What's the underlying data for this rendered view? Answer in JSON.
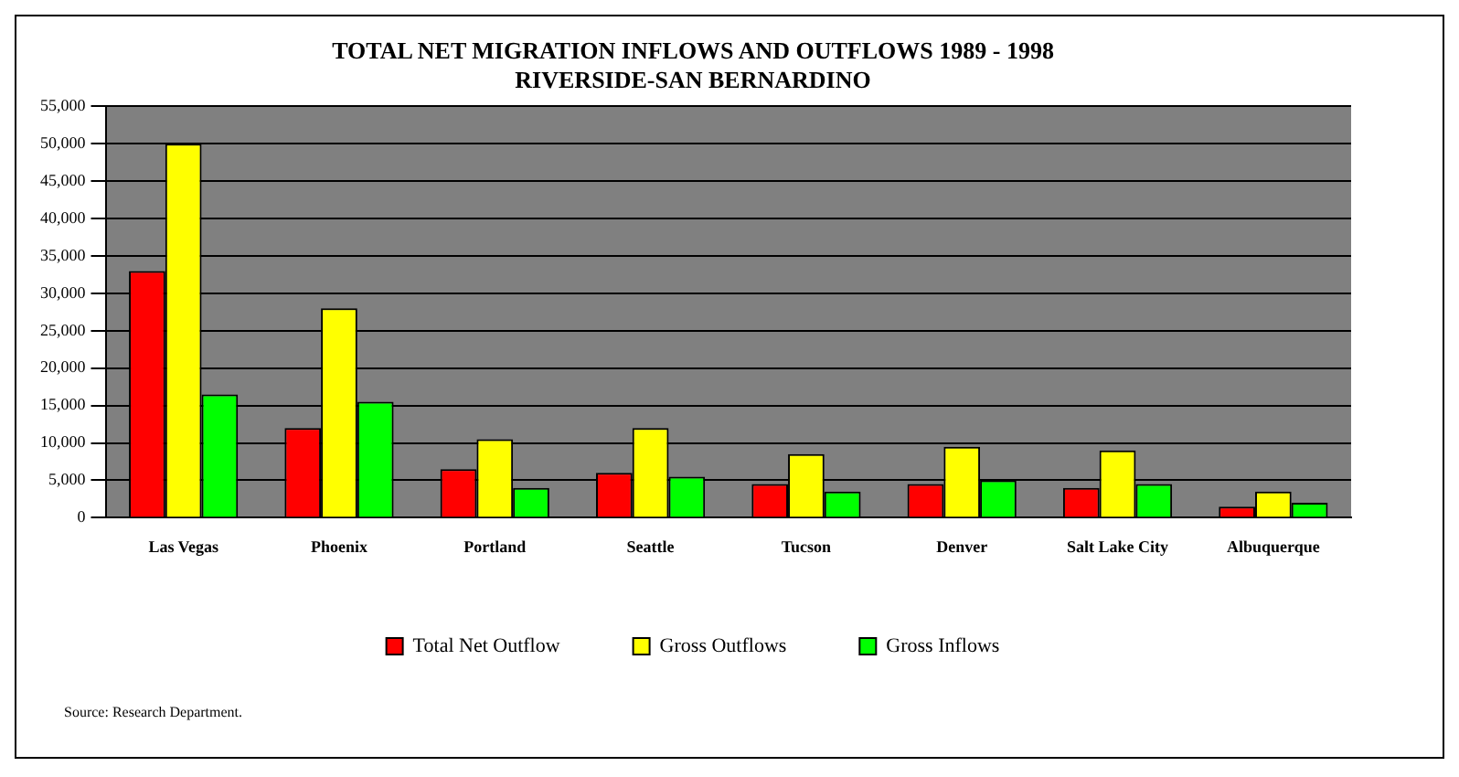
{
  "chart_data": {
    "type": "bar",
    "title": "TOTAL NET MIGRATION INFLOWS AND OUTFLOWS 1989 - 1998",
    "subtitle": "RIVERSIDE-SAN BERNARDINO",
    "categories": [
      "Las Vegas",
      "Phoenix",
      "Portland",
      "Seattle",
      "Tucson",
      "Denver",
      "Salt Lake City",
      "Albuquerque"
    ],
    "series": [
      {
        "name": "Total Net Outflow",
        "color": "#ff0000",
        "values": [
          33000,
          12000,
          6500,
          6000,
          4500,
          4500,
          4000,
          1500
        ]
      },
      {
        "name": "Gross Outflows",
        "color": "#ffff00",
        "values": [
          50000,
          28000,
          10500,
          12000,
          8500,
          9500,
          9000,
          3500
        ]
      },
      {
        "name": "Gross Inflows",
        "color": "#00ff00",
        "values": [
          16500,
          15500,
          4000,
          5500,
          3500,
          5000,
          4500,
          2000
        ]
      }
    ],
    "ylim": [
      0,
      55000
    ],
    "yticks": [
      0,
      {
        "value": 5000,
        "label": "5,000"
      },
      {
        "value": 10000,
        "label": "10,000"
      },
      {
        "value": 15000,
        "label": "15,000"
      },
      {
        "value": 20000,
        "label": "20,000"
      },
      {
        "value": 25000,
        "label": "25,000"
      },
      {
        "value": 30000,
        "label": "30,000"
      },
      {
        "value": 35000,
        "label": "35,000"
      },
      {
        "value": 40000,
        "label": "40,000"
      },
      {
        "value": 45000,
        "label": "45,000"
      },
      {
        "value": 50000,
        "label": "50,000"
      },
      {
        "value": 55000,
        "label": "55,000"
      }
    ],
    "grid": "y",
    "legend": "bottom",
    "annotations": [
      "Source: Research Department."
    ]
  }
}
